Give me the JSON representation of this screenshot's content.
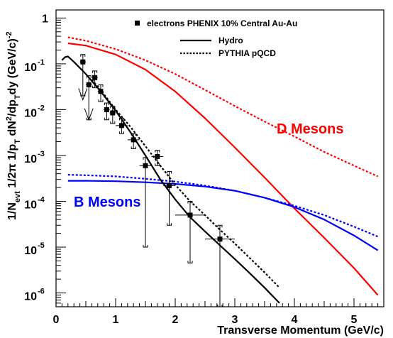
{
  "chart_data": {
    "type": "line",
    "xlabel": "Transverse Momentum (GeV/c)",
    "ylabel": "1/N_evt 1/2π 1/p_T dN²/dp_T dy (GeV/c)^-2",
    "xlim": [
      0,
      5.5
    ],
    "ylim": [
      5e-07,
      1.5
    ],
    "yscale": "log",
    "x_ticks": [
      "0",
      "1",
      "2",
      "3",
      "4",
      "5"
    ],
    "y_ticks": [
      {
        "value": 1,
        "mant": "1",
        "exp": ""
      },
      {
        "value": 0.1,
        "mant": "10",
        "exp": "-1"
      },
      {
        "value": 0.01,
        "mant": "10",
        "exp": "-2"
      },
      {
        "value": 0.001,
        "mant": "10",
        "exp": "-3"
      },
      {
        "value": 0.0001,
        "mant": "10",
        "exp": "-4"
      },
      {
        "value": 1e-05,
        "mant": "10",
        "exp": "-5"
      },
      {
        "value": 1e-06,
        "mant": "10",
        "exp": "-6"
      }
    ],
    "legend": {
      "position": "top-right",
      "entries": [
        {
          "label": "electrons PHENIX 10% Central Au-Au",
          "style": "marker"
        },
        {
          "label": "Hydro",
          "style": "solid"
        },
        {
          "label": "PYTHIA pQCD",
          "style": "dotted"
        }
      ]
    },
    "annotations": [
      {
        "text": "D Mesons",
        "color": "#ff0000"
      },
      {
        "text": "B Mesons",
        "color": "#0000ff"
      }
    ],
    "colors": {
      "data": "#000000",
      "d_mesons": "#ff0000",
      "b_mesons": "#0000ff",
      "hydro": "#000000",
      "pythia": "#000000"
    },
    "data_points": [
      {
        "x": 0.45,
        "y": 0.11,
        "xerr": 0.05,
        "ylo": 0.02,
        "yhi": 0.16
      },
      {
        "x": 0.55,
        "y": 0.035,
        "xerr": 0.05,
        "ylo": 0.006,
        "yhi": 0.055
      },
      {
        "x": 0.65,
        "y": 0.05,
        "xerr": 0.05,
        "ylo": 0.03,
        "yhi": 0.07
      },
      {
        "x": 0.75,
        "y": 0.025,
        "xerr": 0.05,
        "ylo": 0.015,
        "yhi": 0.035
      },
      {
        "x": 0.85,
        "y": 0.01,
        "xerr": 0.05,
        "ylo": 0.006,
        "yhi": 0.014
      },
      {
        "x": 0.95,
        "y": 0.0085,
        "xerr": 0.05,
        "ylo": 0.005,
        "yhi": 0.012
      },
      {
        "x": 1.1,
        "y": 0.0045,
        "xerr": 0.1,
        "ylo": 0.003,
        "yhi": 0.0065
      },
      {
        "x": 1.3,
        "y": 0.0022,
        "xerr": 0.1,
        "ylo": 0.0014,
        "yhi": 0.003
      },
      {
        "x": 1.5,
        "y": 0.0006,
        "xerr": 0.1,
        "ylo": 1e-05,
        "yhi": 0.0009
      },
      {
        "x": 1.7,
        "y": 0.00095,
        "xerr": 0.1,
        "ylo": 0.0006,
        "yhi": 0.0013
      },
      {
        "x": 1.9,
        "y": 0.00022,
        "xerr": 0.1,
        "ylo": 3e-05,
        "yhi": 0.00045
      },
      {
        "x": 2.25,
        "y": 5e-05,
        "xerr": 0.25,
        "ylo": 4.5e-06,
        "yhi": 0.0001
      },
      {
        "x": 2.75,
        "y": 1.5e-05,
        "xerr": 0.25,
        "ylo": 5e-07,
        "yhi": 3e-05
      }
    ],
    "upper_limits": [
      {
        "x": 0.45,
        "y": 0.0165
      },
      {
        "x": 0.55,
        "y": 0.006
      }
    ],
    "curves": {
      "d_mesons_solid": [
        [
          0.2,
          0.28
        ],
        [
          0.5,
          0.25
        ],
        [
          1.0,
          0.16
        ],
        [
          1.5,
          0.075
        ],
        [
          2.0,
          0.025
        ],
        [
          2.5,
          0.0065
        ],
        [
          3.0,
          0.0015
        ],
        [
          3.5,
          0.00033
        ],
        [
          4.0,
          7e-05
        ],
        [
          4.5,
          1.6e-05
        ],
        [
          5.0,
          3.5e-06
        ],
        [
          5.4,
          9e-07
        ]
      ],
      "d_mesons_dotted": [
        [
          0.2,
          0.38
        ],
        [
          0.5,
          0.32
        ],
        [
          1.0,
          0.21
        ],
        [
          1.5,
          0.12
        ],
        [
          2.0,
          0.06
        ],
        [
          2.5,
          0.027
        ],
        [
          3.0,
          0.012
        ],
        [
          3.5,
          0.0055
        ],
        [
          4.0,
          0.0026
        ],
        [
          4.5,
          0.0012
        ],
        [
          5.0,
          0.0006
        ],
        [
          5.4,
          0.00035
        ]
      ],
      "b_mesons_solid": [
        [
          0.2,
          0.00028
        ],
        [
          0.5,
          0.00028
        ],
        [
          1.0,
          0.000275
        ],
        [
          1.5,
          0.00026
        ],
        [
          2.0,
          0.00024
        ],
        [
          2.5,
          0.00021
        ],
        [
          3.0,
          0.00017
        ],
        [
          3.5,
          0.00012
        ],
        [
          4.0,
          7.5e-05
        ],
        [
          4.5,
          4e-05
        ],
        [
          5.0,
          1.8e-05
        ],
        [
          5.4,
          8.5e-06
        ]
      ],
      "b_mesons_dotted": [
        [
          0.2,
          0.00038
        ],
        [
          0.5,
          0.00037
        ],
        [
          1.0,
          0.00035
        ],
        [
          1.5,
          0.00031
        ],
        [
          2.0,
          0.00027
        ],
        [
          2.5,
          0.00022
        ],
        [
          3.0,
          0.00017
        ],
        [
          3.5,
          0.00012
        ],
        [
          4.0,
          8e-05
        ],
        [
          4.5,
          5e-05
        ],
        [
          5.0,
          2.8e-05
        ],
        [
          5.4,
          1.7e-05
        ]
      ],
      "hydro": [
        [
          0.1,
          0.12
        ],
        [
          0.15,
          0.14
        ],
        [
          0.2,
          0.145
        ],
        [
          0.3,
          0.11
        ],
        [
          0.5,
          0.06
        ],
        [
          0.75,
          0.025
        ],
        [
          1.0,
          0.0095
        ],
        [
          1.25,
          0.0032
        ],
        [
          1.5,
          0.001
        ],
        [
          1.75,
          0.0003
        ],
        [
          2.0,
          0.00011
        ],
        [
          2.25,
          4.5e-05
        ],
        [
          2.5,
          2.2e-05
        ],
        [
          2.75,
          1.1e-05
        ],
        [
          3.0,
          5.5e-06
        ],
        [
          3.25,
          2.7e-06
        ],
        [
          3.5,
          1.3e-06
        ],
        [
          3.75,
          6e-07
        ]
      ],
      "pythia": [
        [
          0.6,
          0.045
        ],
        [
          0.8,
          0.022
        ],
        [
          1.0,
          0.01
        ],
        [
          1.25,
          0.0042
        ],
        [
          1.5,
          0.0016
        ],
        [
          1.75,
          0.0006
        ],
        [
          2.0,
          0.00023
        ],
        [
          2.25,
          0.0001
        ],
        [
          2.5,
          5e-05
        ],
        [
          2.75,
          2.4e-05
        ],
        [
          3.0,
          1.2e-05
        ],
        [
          3.25,
          5.8e-06
        ],
        [
          3.5,
          2.8e-06
        ],
        [
          3.75,
          1.3e-06
        ]
      ]
    }
  }
}
